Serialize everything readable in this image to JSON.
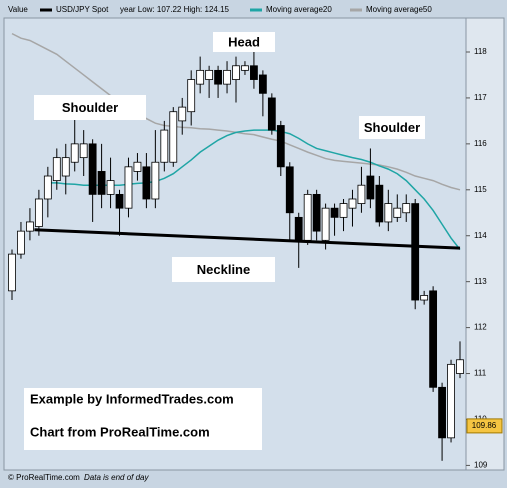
{
  "chart_data": {
    "type": "candlestick",
    "header": {
      "label": "Value",
      "info": "year Low: 107.22 High: 124.15"
    },
    "series": [
      {
        "name": "USD/JPY Spot",
        "color": "#000000",
        "up_color": "#ffffff",
        "open": [
          112.8,
          113.6,
          114.1,
          114.2,
          114.8,
          115.2,
          115.3,
          115.6,
          115.7,
          116.0,
          115.4,
          114.9,
          114.9,
          114.6,
          115.4,
          115.5,
          114.8,
          115.6,
          115.6,
          116.5,
          116.7,
          117.3,
          117.4,
          117.6,
          117.3,
          117.4,
          117.6,
          117.7,
          117.5,
          117.0,
          116.4,
          115.5,
          114.4,
          113.9,
          114.9,
          113.9,
          114.6,
          114.4,
          114.6,
          114.7,
          115.3,
          115.1,
          114.3,
          114.4,
          114.5,
          114.7,
          112.6,
          112.8,
          110.7,
          109.6,
          111.0
        ],
        "high": [
          113.7,
          114.3,
          114.6,
          115.0,
          115.5,
          115.9,
          116.0,
          116.6,
          116.3,
          116.1,
          116.0,
          115.7,
          115.0,
          115.7,
          115.8,
          115.8,
          116.3,
          116.5,
          116.8,
          117.0,
          117.6,
          117.9,
          117.7,
          117.7,
          117.8,
          117.9,
          117.8,
          118.1,
          117.6,
          117.1,
          116.5,
          115.6,
          114.5,
          115.0,
          115.0,
          114.7,
          114.7,
          114.8,
          115.0,
          115.5,
          115.9,
          115.3,
          115.0,
          114.9,
          114.9,
          114.8,
          112.8,
          112.9,
          110.8,
          111.3,
          111.7
        ],
        "low": [
          112.6,
          113.5,
          113.9,
          114.0,
          114.4,
          115.0,
          114.9,
          115.4,
          115.3,
          114.3,
          114.6,
          114.6,
          114.0,
          114.4,
          115.2,
          114.6,
          114.6,
          115.4,
          115.5,
          116.2,
          116.4,
          117.1,
          117.0,
          117.0,
          117.1,
          116.9,
          117.5,
          117.2,
          116.6,
          116.2,
          115.3,
          113.9,
          113.3,
          113.8,
          113.9,
          113.7,
          114.0,
          114.1,
          114.2,
          114.5,
          114.6,
          114.2,
          114.1,
          114.3,
          114.3,
          112.4,
          112.5,
          110.6,
          109.1,
          109.5,
          110.9
        ],
        "close": [
          113.6,
          114.1,
          114.3,
          114.8,
          115.3,
          115.7,
          115.7,
          116.0,
          116.0,
          114.9,
          114.9,
          115.2,
          114.6,
          115.5,
          115.6,
          114.8,
          115.6,
          116.3,
          116.7,
          116.8,
          117.4,
          117.6,
          117.6,
          117.3,
          117.6,
          117.7,
          117.7,
          117.4,
          117.1,
          116.3,
          115.5,
          114.5,
          113.9,
          114.9,
          114.1,
          114.6,
          114.4,
          114.7,
          114.8,
          115.1,
          114.8,
          114.3,
          114.7,
          114.6,
          114.7,
          112.6,
          112.7,
          110.7,
          109.6,
          111.2,
          111.3
        ]
      },
      {
        "name": "Moving average20",
        "color": "#1fa5a5",
        "values": [
          null,
          null,
          null,
          null,
          115.15,
          115.15,
          115.13,
          115.12,
          115.1,
          115.1,
          115.1,
          115.1,
          115.1,
          115.12,
          115.14,
          115.15,
          115.18,
          115.25,
          115.35,
          115.5,
          115.65,
          115.82,
          115.95,
          116.08,
          116.18,
          116.25,
          116.28,
          116.3,
          116.3,
          116.3,
          116.27,
          116.22,
          116.12,
          116.0,
          115.9,
          115.85,
          115.8,
          115.75,
          115.7,
          115.66,
          115.6,
          115.52,
          115.45,
          115.35,
          115.2,
          115.0,
          114.8,
          114.55,
          114.25,
          113.95,
          113.7
        ]
      },
      {
        "name": "Moving average50",
        "color": "#a6a6a6",
        "values": [
          118.4,
          118.3,
          118.25,
          118.15,
          118.05,
          117.95,
          117.8,
          117.65,
          117.5,
          117.35,
          117.2,
          117.05,
          116.95,
          116.8,
          116.7,
          116.55,
          116.45,
          116.4,
          116.38,
          116.36,
          116.35,
          116.33,
          116.32,
          116.3,
          116.28,
          116.25,
          116.22,
          116.2,
          116.15,
          116.1,
          116.06,
          115.98,
          115.9,
          115.82,
          115.75,
          115.68,
          115.64,
          115.62,
          115.6,
          115.58,
          115.56,
          115.54,
          115.5,
          115.45,
          115.38,
          115.3,
          115.25,
          115.2,
          115.12,
          115.05,
          115.0
        ]
      }
    ],
    "neckline": {
      "label": "Neckline",
      "x": [
        2.5,
        50
      ],
      "values": [
        114.13,
        113.73
      ]
    },
    "annotations": [
      "Head",
      "Shoulder",
      "Shoulder"
    ],
    "credits": [
      "Example by InformedTrades.com",
      "Chart from ProRealTime.com"
    ],
    "last_price": 109.86,
    "footer": [
      "© ProRealTime.com",
      "Data is end of day"
    ],
    "ylim": [
      108.9,
      118.74
    ],
    "yticks": [
      109,
      110,
      111,
      112,
      113,
      114,
      115,
      116,
      117,
      118
    ],
    "grid": false
  }
}
